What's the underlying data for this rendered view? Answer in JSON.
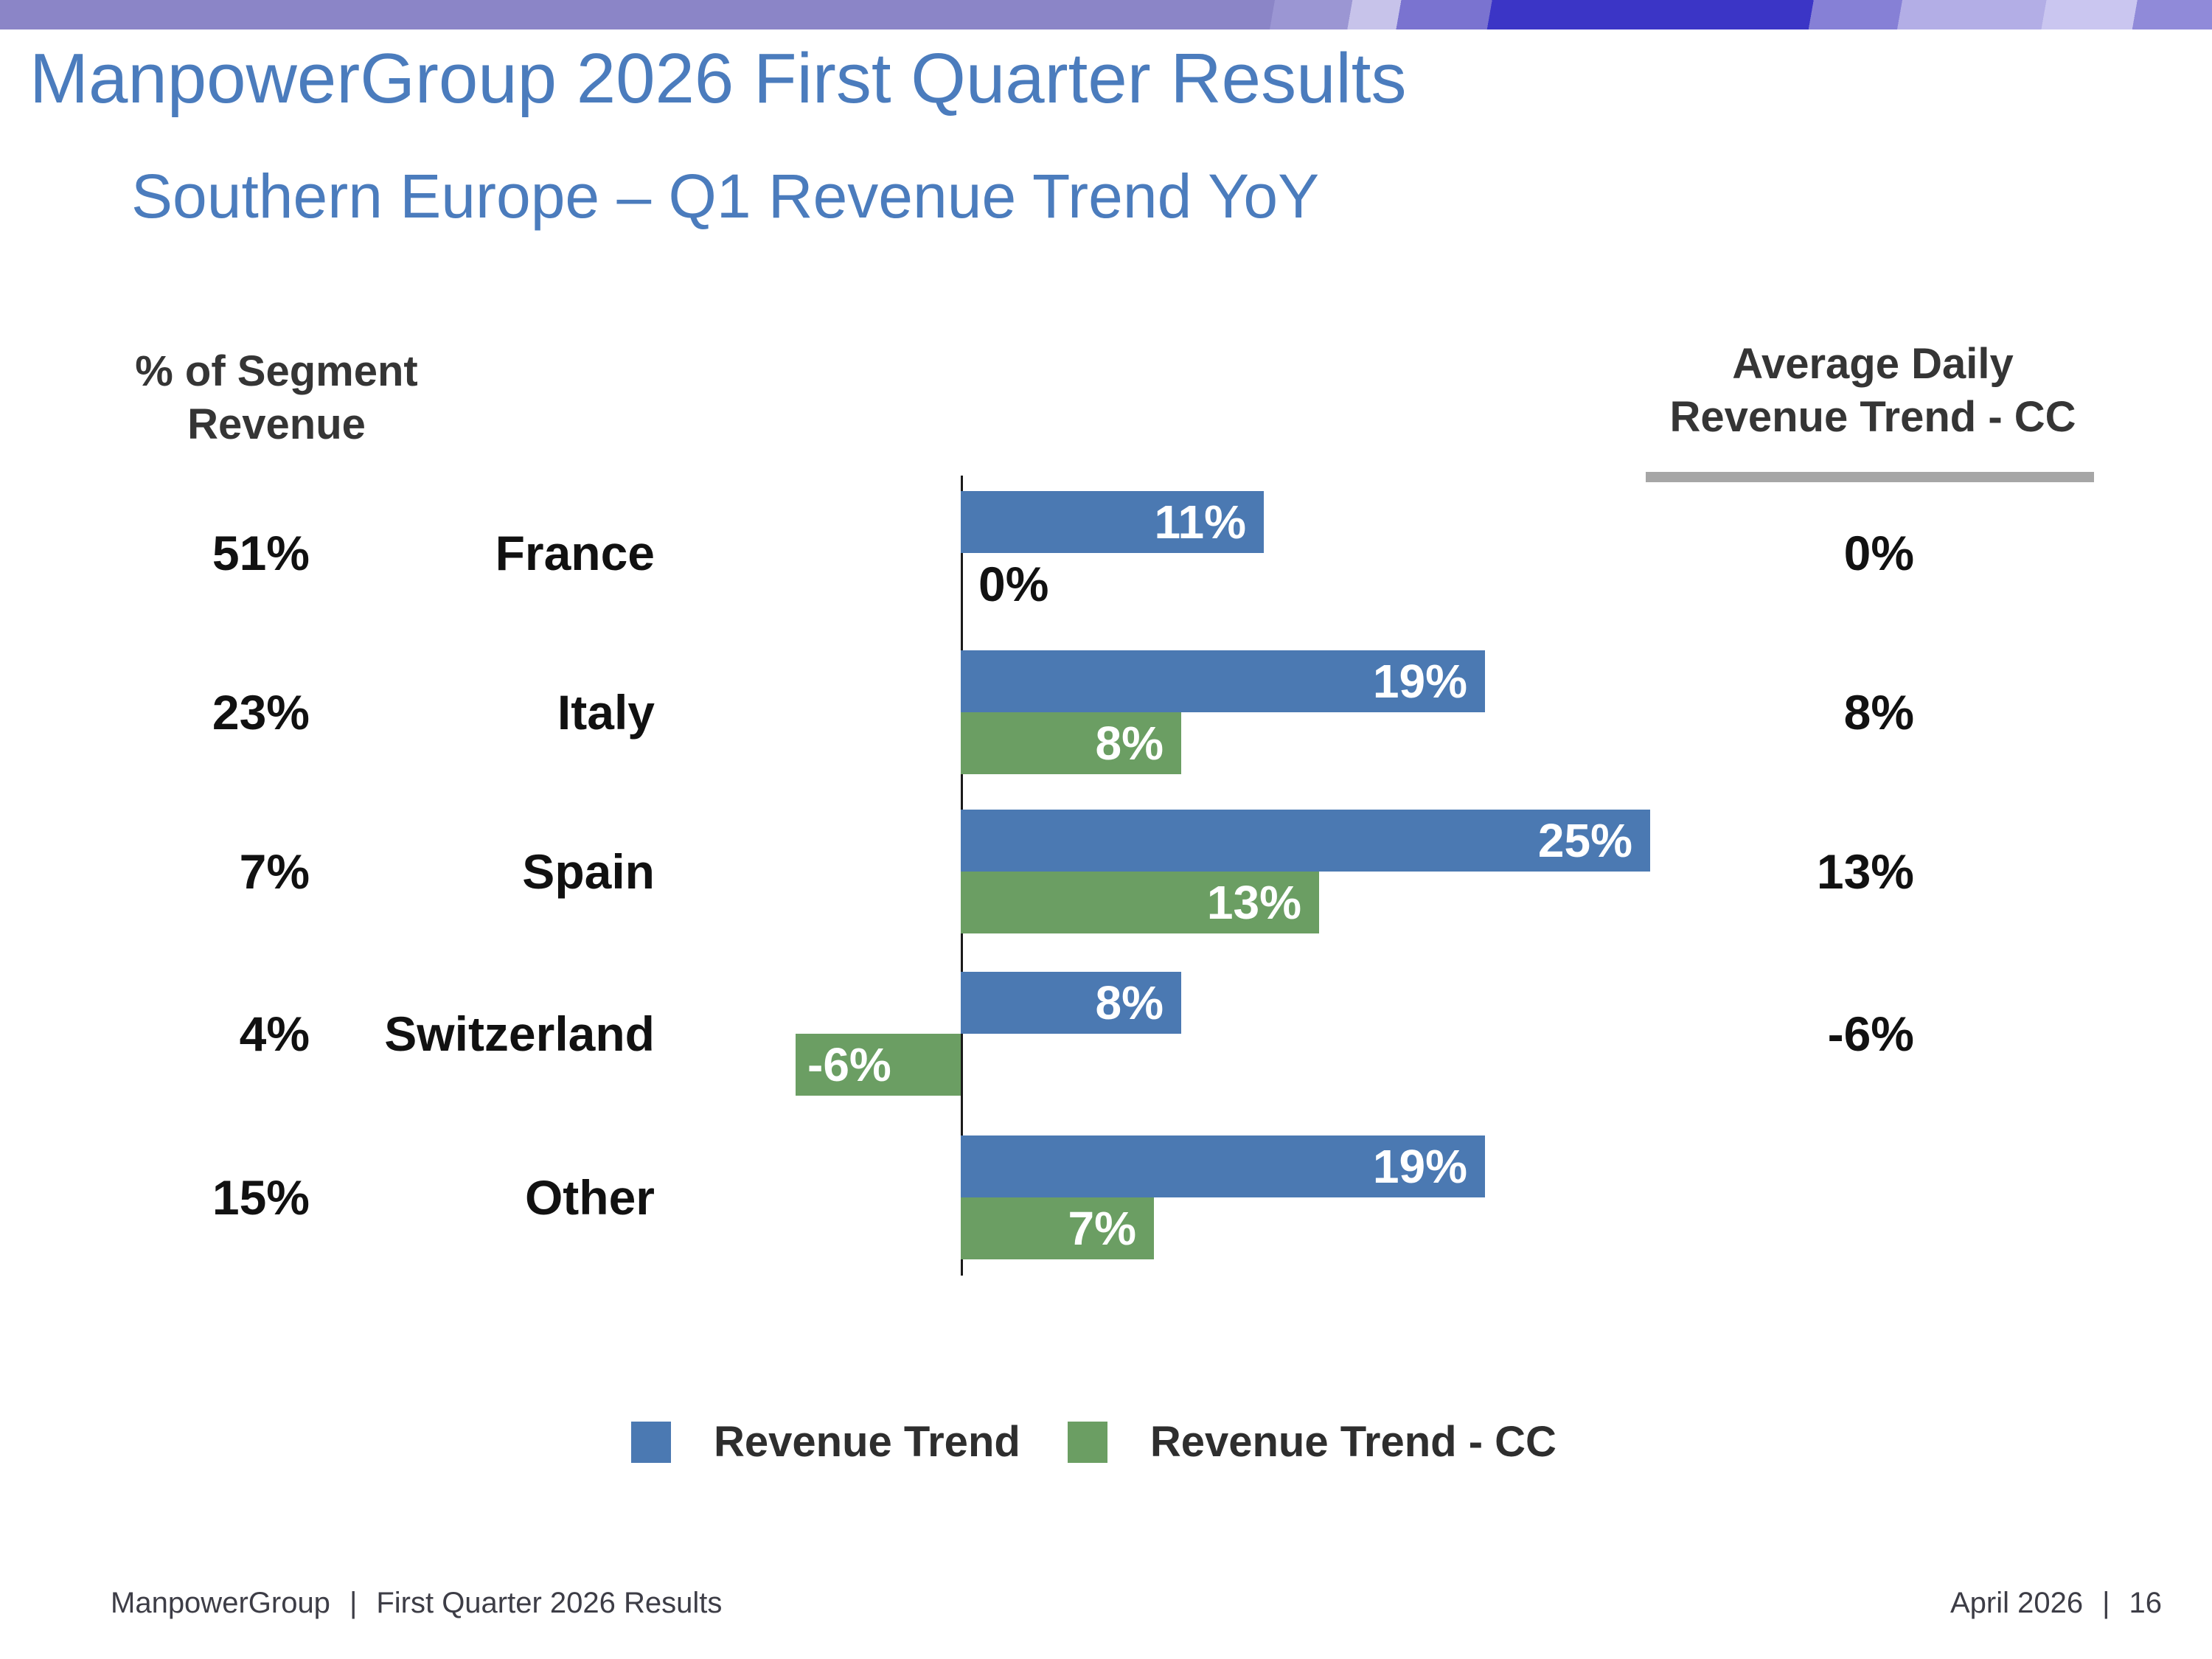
{
  "header": {
    "title": "ManpowerGroup 2026 First Quarter Results",
    "subtitle": "Southern Europe – Q1 Revenue Trend YoY"
  },
  "columns": {
    "left_header": "% of Segment\nRevenue",
    "right_header": "Average Daily\nRevenue Trend - CC"
  },
  "chart_data": {
    "type": "bar",
    "orientation": "horizontal",
    "title": "Southern Europe – Q1 Revenue Trend YoY",
    "categories": [
      "France",
      "Italy",
      "Spain",
      "Switzerland",
      "Other"
    ],
    "segment_revenue_pct": [
      "51%",
      "23%",
      "7%",
      "4%",
      "15%"
    ],
    "series": [
      {
        "name": "Revenue Trend",
        "color": "#4b79b2",
        "values": [
          11,
          19,
          25,
          8,
          19
        ],
        "labels": [
          "11%",
          "19%",
          "25%",
          "8%",
          "19%"
        ]
      },
      {
        "name": "Revenue Trend - CC",
        "color": "#6b9e63",
        "values": [
          0,
          8,
          13,
          -6,
          7
        ],
        "labels": [
          "0%",
          "8%",
          "13%",
          "-6%",
          "7%"
        ]
      }
    ],
    "avg_daily_revenue_trend_cc": [
      "0%",
      "8%",
      "13%",
      "-6%",
      ""
    ],
    "value_unit": "%",
    "zero_baseline": true,
    "legend_position": "bottom",
    "grid": false
  },
  "legend": [
    {
      "label": "Revenue Trend",
      "color": "#4b79b2"
    },
    {
      "label": "Revenue Trend - CC",
      "color": "#6b9e63"
    }
  ],
  "footer": {
    "left_brand": "ManpowerGroup",
    "divider": "|",
    "left_label": "First Quarter 2026 Results",
    "right_date": "April 2026",
    "right_page": "16"
  }
}
